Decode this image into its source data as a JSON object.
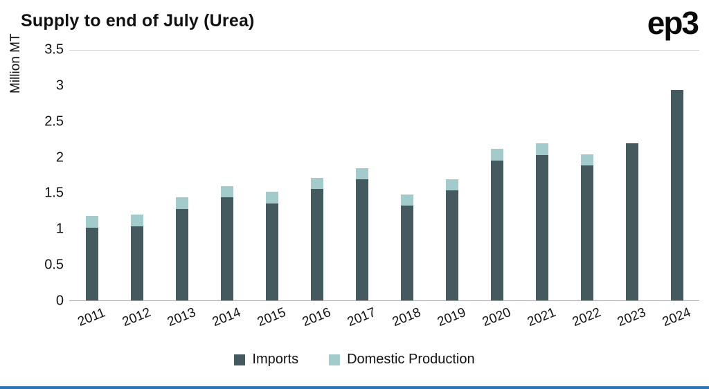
{
  "header": {
    "title": "Supply to end of July (Urea)",
    "logo_text": "ep3"
  },
  "chart_data": {
    "type": "bar",
    "stacked": true,
    "title": "Supply to end of July (Urea)",
    "xlabel": "",
    "ylabel": "Million MT",
    "ylim": [
      0,
      3.5
    ],
    "yticks": [
      0,
      0.5,
      1,
      1.5,
      2,
      2.5,
      3,
      3.5
    ],
    "grid": "top-line-and-baseline-only",
    "legend_position": "bottom",
    "categories": [
      "2011",
      "2012",
      "2013",
      "2014",
      "2015",
      "2016",
      "2017",
      "2018",
      "2019",
      "2020",
      "2021",
      "2022",
      "2023",
      "2024"
    ],
    "series": [
      {
        "name": "Imports",
        "color": "#455a5f",
        "values": [
          1.02,
          1.04,
          1.28,
          1.44,
          1.36,
          1.56,
          1.7,
          1.33,
          1.54,
          1.96,
          2.04,
          1.89,
          2.2,
          2.95
        ]
      },
      {
        "name": "Domestic Production",
        "color": "#a3cbcc",
        "values": [
          0.16,
          0.16,
          0.16,
          0.16,
          0.16,
          0.16,
          0.15,
          0.15,
          0.16,
          0.16,
          0.16,
          0.16,
          0,
          0
        ]
      }
    ]
  },
  "colors": {
    "imports": "#455a5f",
    "domestic_production": "#a3cbcc",
    "bottom_accent_bar": "#2e75b6",
    "gridline": "#cccccc",
    "axis_text": "#111111"
  }
}
